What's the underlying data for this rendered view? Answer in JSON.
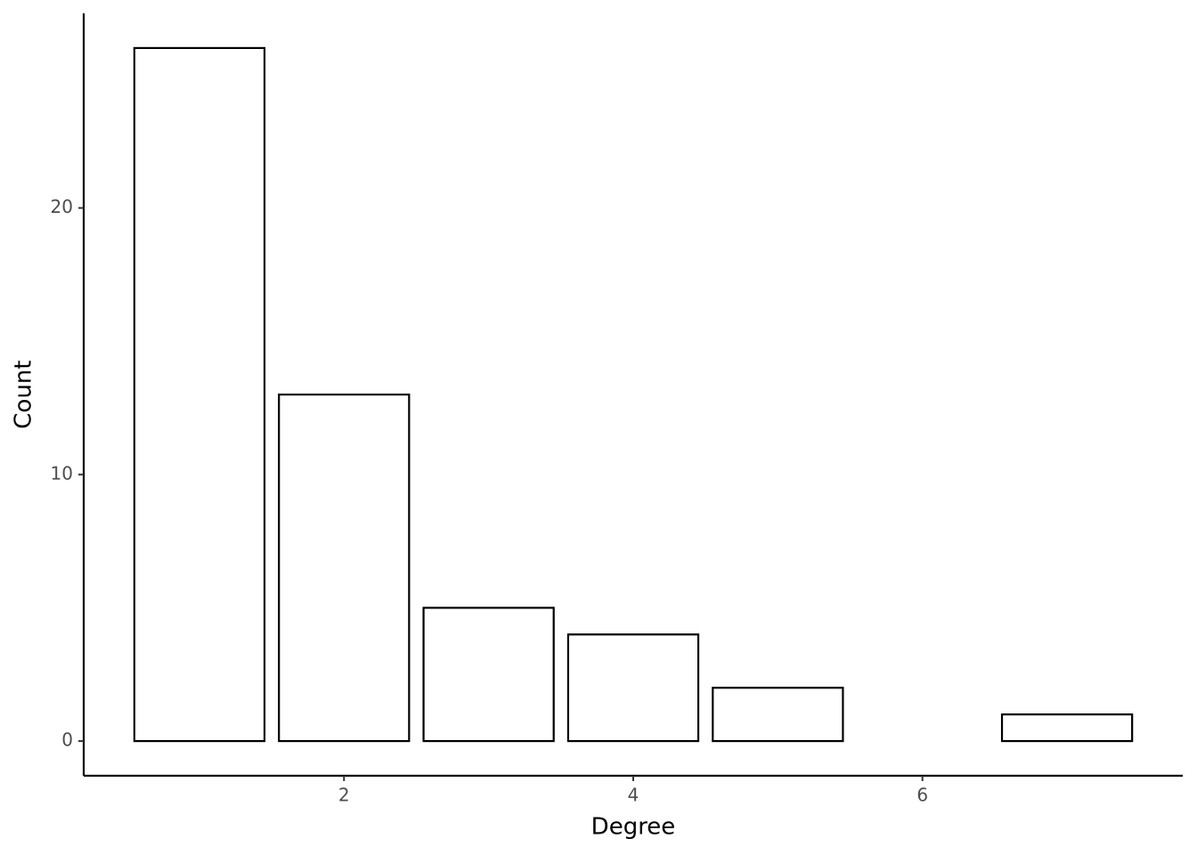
{
  "chart_data": {
    "type": "bar",
    "x_label": "Degree",
    "y_label": "Count",
    "x": [
      1,
      2,
      3,
      4,
      5,
      7
    ],
    "values": [
      26,
      13,
      5,
      4,
      2,
      1
    ],
    "color": "#ffffff",
    "edge_color": "#000000",
    "xlim": [
      0.2,
      7.8
    ],
    "xticks": [
      2,
      4,
      6
    ],
    "ylim": [
      -1.3,
      27.3
    ],
    "yticks": [
      0,
      10,
      20
    ],
    "grid": false
  }
}
